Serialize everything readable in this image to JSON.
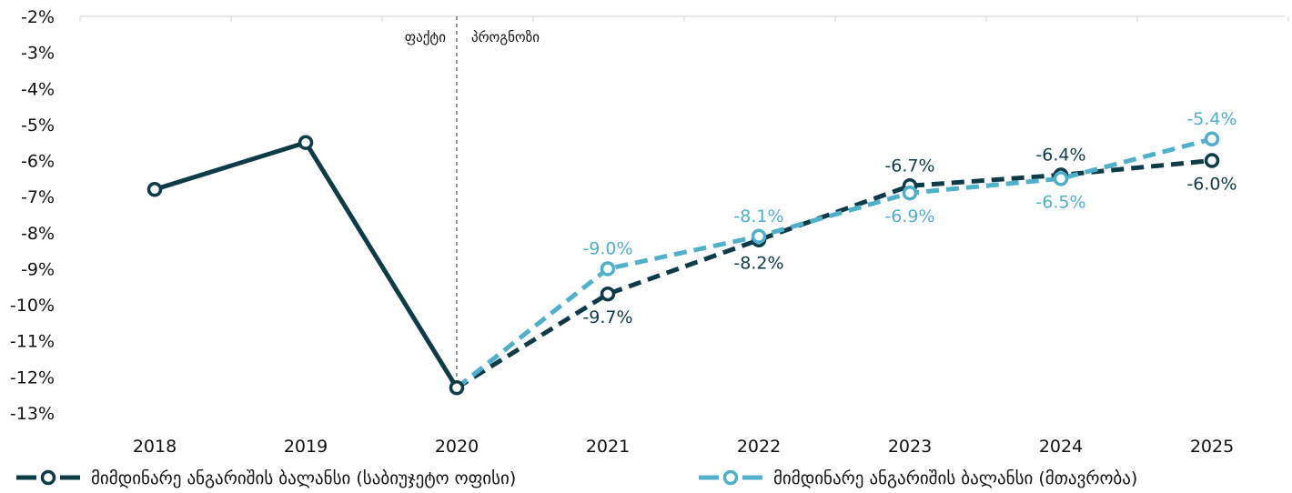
{
  "chart_data": {
    "type": "line",
    "title": "",
    "xlabel": "",
    "ylabel": "",
    "categories": [
      "2018",
      "2019",
      "2020",
      "2021",
      "2022",
      "2023",
      "2024",
      "2025"
    ],
    "ylim": [
      -13,
      -2
    ],
    "y_ticks": [
      "-2%",
      "-3%",
      "-4%",
      "-5%",
      "-6%",
      "-7%",
      "-8%",
      "-9%",
      "-10%",
      "-11%",
      "-12%",
      "-13%"
    ],
    "grid": false,
    "legend_position": "bottom",
    "annotations": {
      "divider_category": "2020",
      "left_label": "ფაქტი",
      "right_label": "პროგნოზი"
    },
    "series": [
      {
        "name": "მიმდინარე ანგარიშის ბალანსი (საბიუჯეტო ოფისი)",
        "color": "#0d3b47",
        "style": "solid-then-dashed",
        "values": [
          -6.8,
          -5.5,
          -12.3,
          -9.7,
          -8.2,
          -6.7,
          -6.4,
          -6.0
        ],
        "labels": [
          "",
          "",
          "",
          "-9.7%",
          "-8.2%",
          "-6.7%",
          "-6.4%",
          "-6.0%"
        ]
      },
      {
        "name": "მიმდინარე ანგარიშის ბალანსი (მთავრობა)",
        "color": "#4fb0cc",
        "style": "dashed",
        "values": [
          null,
          null,
          -12.3,
          -9.0,
          -8.1,
          -6.9,
          -6.5,
          -5.4
        ],
        "labels": [
          "",
          "",
          "",
          "-9.0%",
          "-8.1%",
          "-6.9%",
          "-6.5%",
          "-5.4%"
        ]
      }
    ]
  }
}
